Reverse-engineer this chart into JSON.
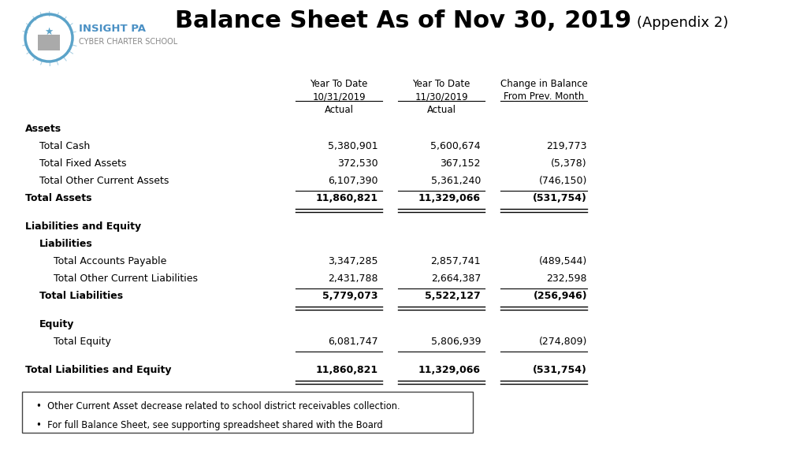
{
  "title_main": "Balance Sheet As of Nov 30, 2019",
  "title_appendix": "(Appendix 2)",
  "logo_text_line1": "INSIGHT PA",
  "logo_text_line2": "CYBER CHARTER SCHOOL",
  "col_headers_line1": [
    "Year To Date",
    "Year To Date",
    "Change in Balance"
  ],
  "col_headers_line2": [
    "10/31/2019",
    "11/30/2019",
    "From Prev. Month"
  ],
  "col_headers_line3": [
    "Actual",
    "Actual",
    ""
  ],
  "rows": [
    {
      "label": "Assets",
      "bold": true,
      "indent": 0,
      "values": [
        "",
        "",
        ""
      ],
      "type": "section"
    },
    {
      "label": "Total Cash",
      "bold": false,
      "indent": 1,
      "values": [
        "5,380,901",
        "5,600,674",
        "219,773"
      ],
      "type": "data"
    },
    {
      "label": "Total Fixed Assets",
      "bold": false,
      "indent": 1,
      "values": [
        "372,530",
        "367,152",
        "(5,378)"
      ],
      "type": "data"
    },
    {
      "label": "Total Other Current Assets",
      "bold": false,
      "indent": 1,
      "values": [
        "6,107,390",
        "5,361,240",
        "(746,150)"
      ],
      "type": "data",
      "underline_below": true
    },
    {
      "label": "Total Assets",
      "bold": true,
      "indent": 0,
      "values": [
        "11,860,821",
        "11,329,066",
        "(531,754)"
      ],
      "type": "total_double"
    },
    {
      "label": "",
      "bold": false,
      "indent": 0,
      "values": [
        "",
        "",
        ""
      ],
      "type": "spacer"
    },
    {
      "label": "Liabilities and Equity",
      "bold": true,
      "indent": 0,
      "values": [
        "",
        "",
        ""
      ],
      "type": "section"
    },
    {
      "label": "Liabilities",
      "bold": true,
      "indent": 1,
      "values": [
        "",
        "",
        ""
      ],
      "type": "section"
    },
    {
      "label": "Total Accounts Payable",
      "bold": false,
      "indent": 2,
      "values": [
        "3,347,285",
        "2,857,741",
        "(489,544)"
      ],
      "type": "data"
    },
    {
      "label": "Total Other Current Liabilities",
      "bold": false,
      "indent": 2,
      "values": [
        "2,431,788",
        "2,664,387",
        "232,598"
      ],
      "type": "data",
      "underline_below": true
    },
    {
      "label": "Total Liabilities",
      "bold": true,
      "indent": 1,
      "values": [
        "5,779,073",
        "5,522,127",
        "(256,946)"
      ],
      "type": "total_double"
    },
    {
      "label": "",
      "bold": false,
      "indent": 0,
      "values": [
        "",
        "",
        ""
      ],
      "type": "spacer"
    },
    {
      "label": "Equity",
      "bold": true,
      "indent": 1,
      "values": [
        "",
        "",
        ""
      ],
      "type": "section"
    },
    {
      "label": "Total Equity",
      "bold": false,
      "indent": 2,
      "values": [
        "6,081,747",
        "5,806,939",
        "(274,809)"
      ],
      "type": "data",
      "underline_below": true
    },
    {
      "label": "",
      "bold": false,
      "indent": 0,
      "values": [
        "",
        "",
        ""
      ],
      "type": "spacer"
    },
    {
      "label": "Total Liabilities and Equity",
      "bold": true,
      "indent": 0,
      "values": [
        "11,860,821",
        "11,329,066",
        "(531,754)"
      ],
      "type": "total_double"
    }
  ],
  "footnotes": [
    "Other Current Asset decrease related to school district receivables collection.",
    "For full Balance Sheet, see supporting spreadsheet shared with the Board"
  ],
  "bg_color": "#ffffff",
  "text_color": "#000000",
  "accent_color": "#4a90c4"
}
